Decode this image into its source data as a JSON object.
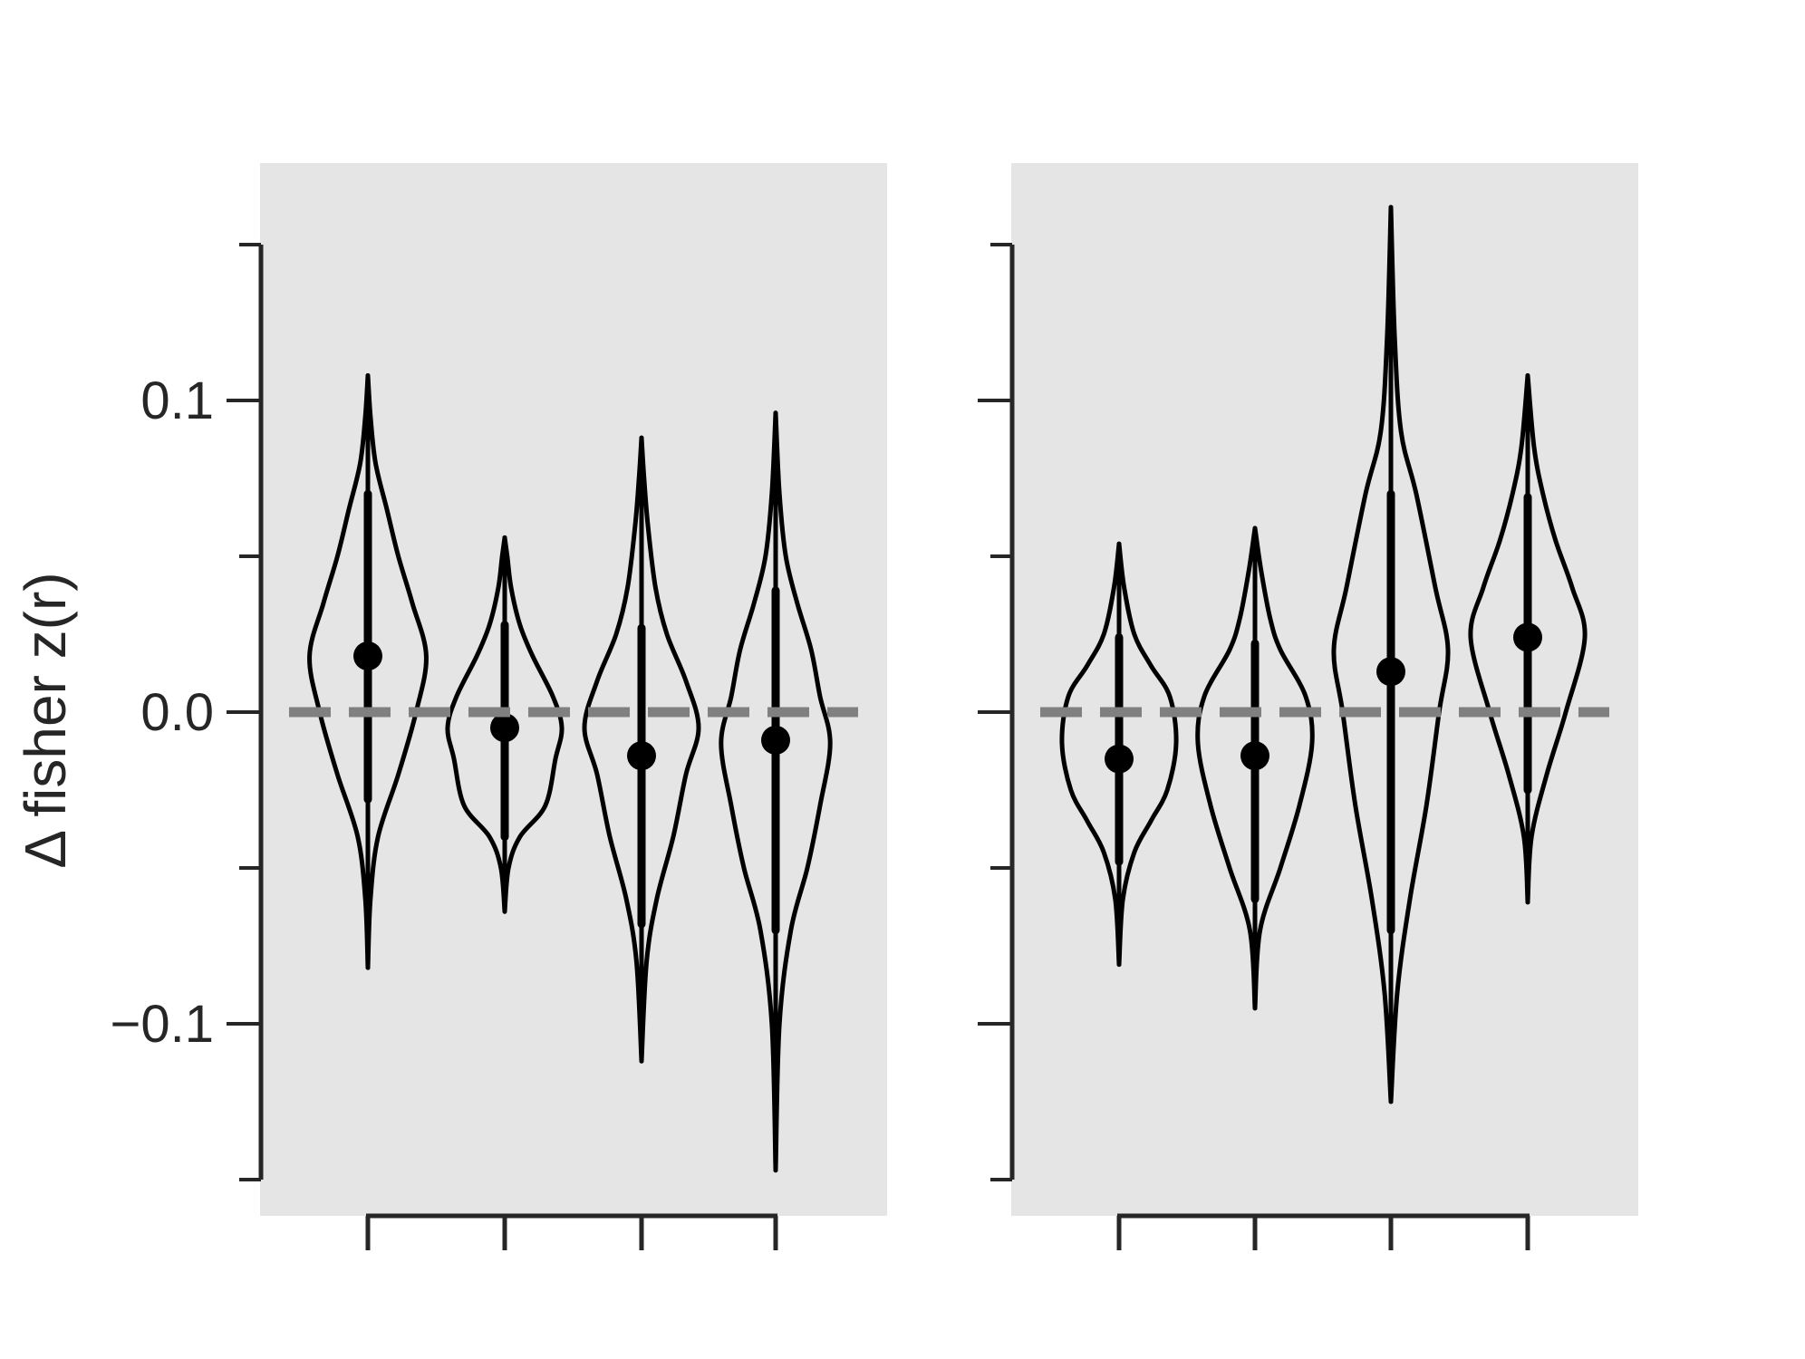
{
  "chart_data": {
    "type": "violin",
    "ylabel": "Δ fisher z(r)",
    "ylim": [
      -0.15,
      0.16
    ],
    "yticks": [
      -0.15,
      -0.1,
      -0.05,
      0.0,
      0.05,
      0.1,
      0.15
    ],
    "ytick_labels": [
      "",
      "−0.1",
      "",
      "0.0",
      "",
      "0.1",
      ""
    ],
    "reference_line": 0.0,
    "colors": {
      "panel_bg": "#e5e5e5",
      "ink": "#000000",
      "axis": "#262626",
      "reference": "#808080"
    },
    "panels": [
      {
        "violins": [
          {
            "min": -0.082,
            "max": 0.108,
            "mean": 0.018,
            "ci": [
              -0.028,
              0.07
            ],
            "profile": [
              [
                -0.082,
                0.0
              ],
              [
                -0.06,
                0.002
              ],
              [
                -0.04,
                0.008
              ],
              [
                -0.02,
                0.024
              ],
              [
                0.0,
                0.038
              ],
              [
                0.018,
                0.046
              ],
              [
                0.035,
                0.035
              ],
              [
                0.05,
                0.024
              ],
              [
                0.065,
                0.015
              ],
              [
                0.08,
                0.006
              ],
              [
                0.095,
                0.002
              ],
              [
                0.108,
                0.0
              ]
            ]
          },
          {
            "min": -0.064,
            "max": 0.056,
            "mean": -0.005,
            "ci": [
              -0.04,
              0.028
            ],
            "profile": [
              [
                -0.064,
                0.0
              ],
              [
                -0.05,
                0.003
              ],
              [
                -0.04,
                0.012
              ],
              [
                -0.03,
                0.032
              ],
              [
                -0.015,
                0.04
              ],
              [
                -0.005,
                0.045
              ],
              [
                0.005,
                0.038
              ],
              [
                0.018,
                0.022
              ],
              [
                0.028,
                0.012
              ],
              [
                0.04,
                0.005
              ],
              [
                0.05,
                0.002
              ],
              [
                0.056,
                0.0
              ]
            ]
          },
          {
            "min": -0.112,
            "max": 0.088,
            "mean": -0.014,
            "ci": [
              -0.068,
              0.027
            ],
            "profile": [
              [
                -0.112,
                0.0
              ],
              [
                -0.08,
                0.004
              ],
              [
                -0.06,
                0.012
              ],
              [
                -0.04,
                0.025
              ],
              [
                -0.02,
                0.035
              ],
              [
                -0.005,
                0.045
              ],
              [
                0.01,
                0.035
              ],
              [
                0.025,
                0.02
              ],
              [
                0.04,
                0.011
              ],
              [
                0.06,
                0.005
              ],
              [
                0.075,
                0.002
              ],
              [
                0.088,
                0.0
              ]
            ]
          },
          {
            "min": -0.147,
            "max": 0.096,
            "mean": -0.009,
            "ci": [
              -0.07,
              0.039
            ],
            "profile": [
              [
                -0.147,
                0.0
              ],
              [
                -0.1,
                0.003
              ],
              [
                -0.07,
                0.012
              ],
              [
                -0.05,
                0.025
              ],
              [
                -0.03,
                0.035
              ],
              [
                -0.01,
                0.043
              ],
              [
                0.005,
                0.035
              ],
              [
                0.02,
                0.028
              ],
              [
                0.035,
                0.017
              ],
              [
                0.05,
                0.008
              ],
              [
                0.07,
                0.003
              ],
              [
                0.096,
                0.0
              ]
            ]
          }
        ]
      },
      {
        "violins": [
          {
            "min": -0.081,
            "max": 0.054,
            "mean": -0.015,
            "ci": [
              -0.048,
              0.024
            ],
            "profile": [
              [
                -0.081,
                0.0
              ],
              [
                -0.06,
                0.003
              ],
              [
                -0.045,
                0.012
              ],
              [
                -0.035,
                0.025
              ],
              [
                -0.025,
                0.038
              ],
              [
                -0.01,
                0.045
              ],
              [
                0.005,
                0.04
              ],
              [
                0.015,
                0.025
              ],
              [
                0.025,
                0.012
              ],
              [
                0.04,
                0.004
              ],
              [
                0.054,
                0.0
              ]
            ]
          },
          {
            "min": -0.095,
            "max": 0.059,
            "mean": -0.014,
            "ci": [
              -0.06,
              0.022
            ],
            "profile": [
              [
                -0.095,
                0.0
              ],
              [
                -0.07,
                0.004
              ],
              [
                -0.05,
                0.02
              ],
              [
                -0.03,
                0.035
              ],
              [
                -0.01,
                0.045
              ],
              [
                0.005,
                0.04
              ],
              [
                0.02,
                0.02
              ],
              [
                0.03,
                0.012
              ],
              [
                0.045,
                0.005
              ],
              [
                0.059,
                0.0
              ]
            ]
          },
          {
            "min": -0.125,
            "max": 0.162,
            "mean": 0.013,
            "ci": [
              -0.07,
              0.07
            ],
            "profile": [
              [
                -0.125,
                0.0
              ],
              [
                -0.09,
                0.005
              ],
              [
                -0.06,
                0.015
              ],
              [
                -0.03,
                0.028
              ],
              [
                0.0,
                0.038
              ],
              [
                0.02,
                0.045
              ],
              [
                0.04,
                0.035
              ],
              [
                0.07,
                0.02
              ],
              [
                0.09,
                0.008
              ],
              [
                0.12,
                0.003
              ],
              [
                0.162,
                0.0
              ]
            ]
          },
          {
            "min": -0.061,
            "max": 0.108,
            "mean": 0.024,
            "ci": [
              -0.025,
              0.069
            ],
            "profile": [
              [
                -0.061,
                0.0
              ],
              [
                -0.04,
                0.003
              ],
              [
                -0.02,
                0.015
              ],
              [
                0.0,
                0.03
              ],
              [
                0.024,
                0.045
              ],
              [
                0.04,
                0.035
              ],
              [
                0.055,
                0.022
              ],
              [
                0.07,
                0.012
              ],
              [
                0.085,
                0.005
              ],
              [
                0.108,
                0.0
              ]
            ]
          }
        ]
      }
    ]
  }
}
